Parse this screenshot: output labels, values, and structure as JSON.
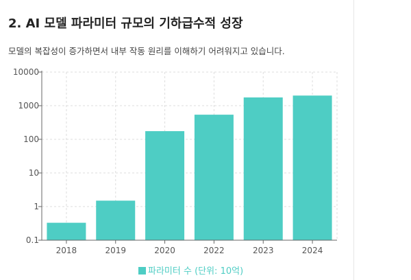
{
  "header": {
    "title": "2. AI 모델 파라미터 규모의 기하급수적 성장",
    "subtitle": "모델의 복잡성이 증가하면서 내부 작동 원리를 이해하기 어려워지고 있습니다."
  },
  "chart_data": {
    "type": "bar",
    "title": "",
    "categories": [
      "2018",
      "2019",
      "2020",
      "2022",
      "2023",
      "2024"
    ],
    "series": [
      {
        "name": "파라미터 수 (단위: 10억)",
        "values": [
          0.33,
          1.5,
          175,
          540,
          1760,
          2000
        ],
        "color": "#4ecdc4"
      }
    ],
    "yscale": "log",
    "ylim": [
      0.1,
      10000
    ],
    "yticks": [
      "0.1",
      "1",
      "10",
      "100",
      "1000",
      "10000"
    ],
    "xlabel": "",
    "ylabel": "",
    "grid": true,
    "legend": "bottom"
  }
}
